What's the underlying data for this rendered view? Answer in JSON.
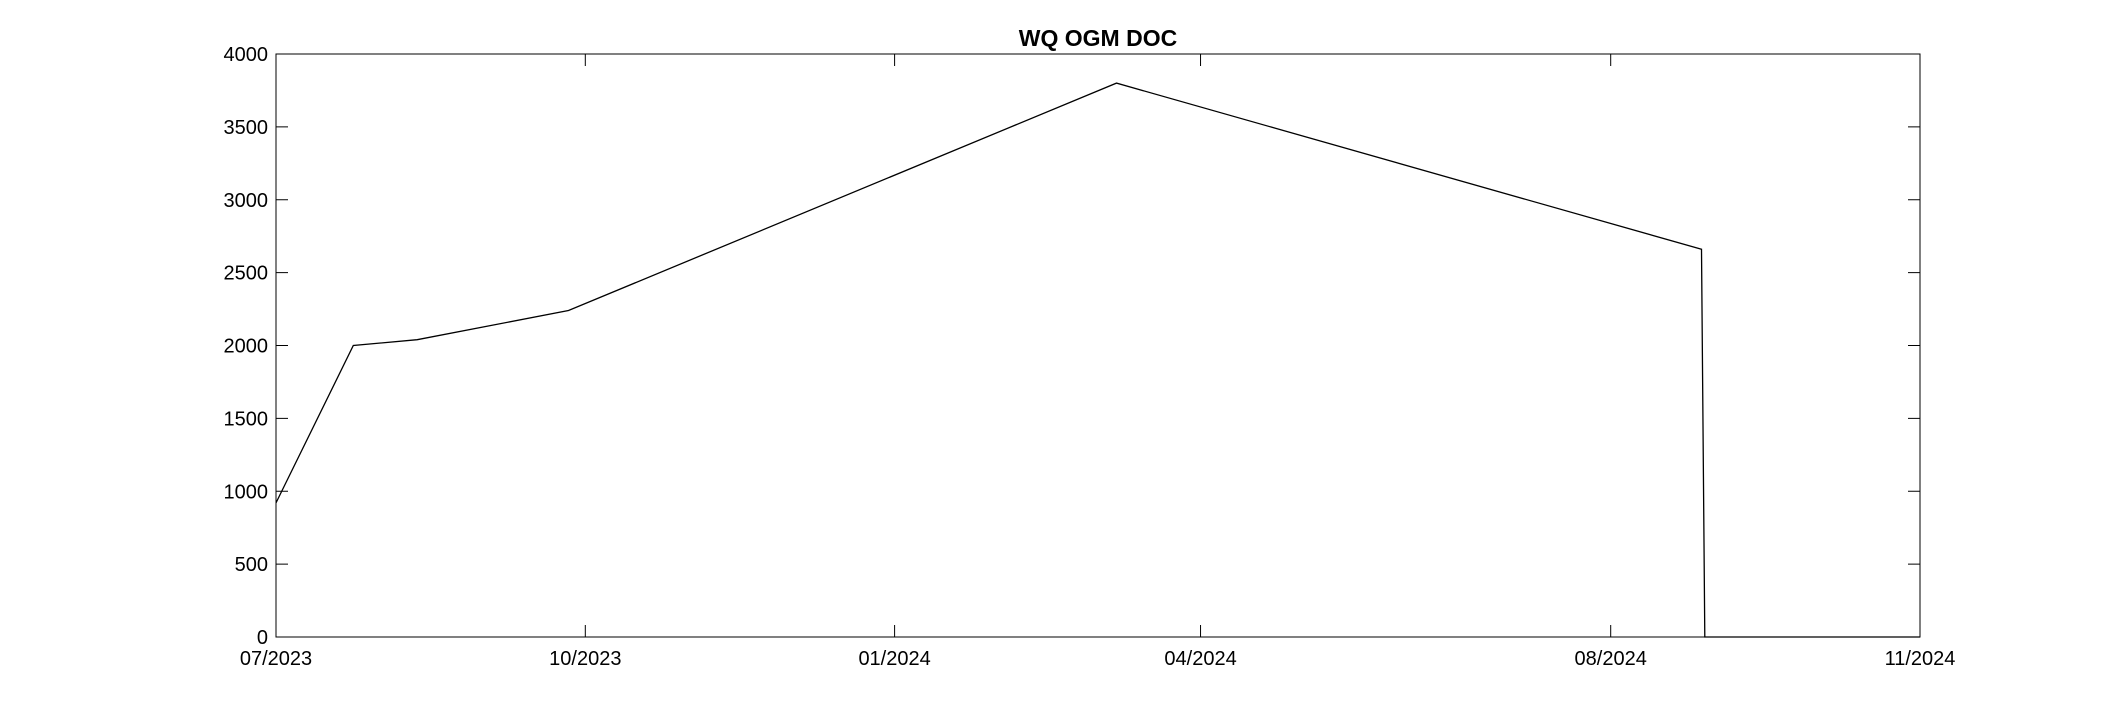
{
  "chart_data": {
    "type": "line",
    "title": "WQ OGM DOC",
    "xlabel": "",
    "ylabel": "",
    "x_tick_labels": [
      "07/2023",
      "10/2023",
      "01/2024",
      "04/2024",
      "08/2024",
      "11/2024"
    ],
    "x_tick_dates": [
      "2023-07-01",
      "2023-10-01",
      "2024-01-01",
      "2024-04-01",
      "2024-08-01",
      "2024-11-01"
    ],
    "xlim": [
      "2023-07-01",
      "2024-11-01"
    ],
    "ylim": [
      0,
      4000
    ],
    "y_ticks": [
      0,
      500,
      1000,
      1500,
      2000,
      2500,
      3000,
      3500,
      4000
    ],
    "grid": false,
    "series": [
      {
        "color": "#000000",
        "points": [
          {
            "x": "2023-07-01",
            "y": 920
          },
          {
            "x": "2023-07-24",
            "y": 2000
          },
          {
            "x": "2023-08-12",
            "y": 2040
          },
          {
            "x": "2023-09-26",
            "y": 2240
          },
          {
            "x": "2024-03-07",
            "y": 3800
          },
          {
            "x": "2024-08-28",
            "y": 2660
          },
          {
            "x": "2024-08-29",
            "y": 0
          },
          {
            "x": "2024-11-01",
            "y": 0
          }
        ]
      }
    ]
  }
}
